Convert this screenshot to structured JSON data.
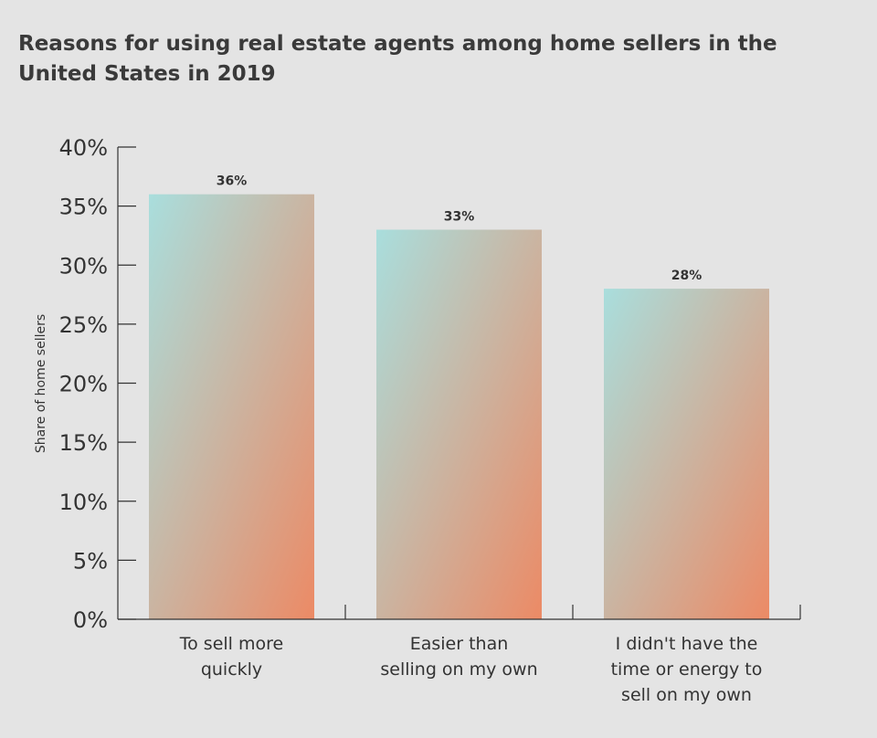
{
  "chart_data": {
    "type": "bar",
    "title": "Reasons for using real estate agents among home sellers in the United States in 2019",
    "xlabel": "",
    "ylabel": "Share of home sellers",
    "categories": [
      [
        "To sell more",
        "quickly"
      ],
      [
        "Easier than",
        "selling on my own"
      ],
      [
        "I didn't have the",
        "time or energy to",
        "sell on my own"
      ]
    ],
    "values": [
      36,
      33,
      28
    ],
    "data_labels": [
      "36%",
      "33%",
      "28%"
    ],
    "ylim": [
      0,
      40
    ],
    "yticks": [
      0,
      5,
      10,
      15,
      20,
      25,
      30,
      35,
      40
    ],
    "ytick_labels": [
      "0%",
      "5%",
      "10%",
      "15%",
      "20%",
      "25%",
      "30%",
      "35%",
      "40%"
    ],
    "grid": false,
    "legend": "none",
    "bar_gradient": [
      "#a9dedd",
      "#ec8a65"
    ]
  }
}
